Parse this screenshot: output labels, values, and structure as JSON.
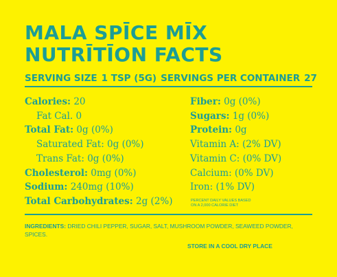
{
  "title": {
    "line1": "MALA SPĪCE MĪX",
    "line2": "NUTRĪTĪON FACTS"
  },
  "serving": {
    "size_label": "SERVING SIZE",
    "size_value": "1 TSP (5G)",
    "per_container_label": "SERVINGS PER CONTAINER",
    "per_container_value": "27"
  },
  "left_column": [
    {
      "label": "Calories:",
      "value": " 20",
      "bold": true,
      "indent": false
    },
    {
      "label": "Fat Cal.",
      "value": " 0",
      "bold": false,
      "indent": true
    },
    {
      "label": "Total Fat:",
      "value": " 0g (0%)",
      "bold": true,
      "indent": false
    },
    {
      "label": "Saturated Fat:",
      "value": " 0g (0%)",
      "bold": false,
      "indent": true
    },
    {
      "label": "Trans Fat:",
      "value": " 0g (0%)",
      "bold": false,
      "indent": true
    },
    {
      "label": "Cholesterol:",
      "value": " 0mg (0%)",
      "bold": true,
      "indent": false
    },
    {
      "label": "Sodium:",
      "value": " 240mg (10%)",
      "bold": true,
      "indent": false
    },
    {
      "label": "Total Carbohydrates:",
      "value": " 2g (2%)",
      "bold": true,
      "indent": false
    }
  ],
  "right_column": [
    {
      "label": "Fiber:",
      "value": " 0g (0%)",
      "bold": true
    },
    {
      "label": "Sugars:",
      "value": " 1g (0%)",
      "bold": true
    },
    {
      "label": "Protein:",
      "value": " 0g",
      "bold": true
    },
    {
      "label": "Vitamin A:",
      "value": " (2% DV)",
      "bold": false
    },
    {
      "label": "Vitamin C:",
      "value": " (0% DV)",
      "bold": false
    },
    {
      "label": "Calcium:",
      "value": " (0% DV)",
      "bold": false
    },
    {
      "label": "Iron:",
      "value": " (1% DV)",
      "bold": false
    }
  ],
  "dv_note": {
    "line1": "PERCENT DAILY VALUES BASED",
    "line2": "ON A 2,000 CALORIE DIET"
  },
  "ingredients": {
    "label": "INGREDIENTS:",
    "text": " DRIED CHILI PEPPER, SUGAR, SALT, MUSHROOM POWDER, SEAWEED POWDER, SPICES."
  },
  "storage": "STORE IN A COOL DRY PLACE",
  "colors": {
    "background": "#fdf200",
    "text": "#1c9d95"
  }
}
